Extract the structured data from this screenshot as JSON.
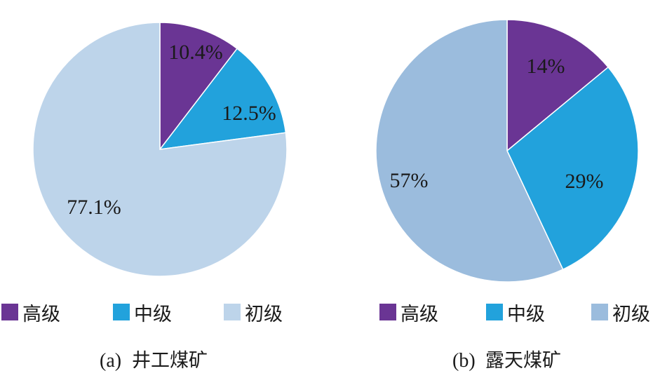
{
  "chart_data": [
    {
      "type": "pie",
      "caption_prefix": "(a)",
      "caption_text": "井工煤矿",
      "categories": [
        "高级",
        "中级",
        "初级"
      ],
      "values": [
        10.4,
        12.5,
        77.1
      ],
      "labels": [
        "10.4%",
        "12.5%",
        "77.1%"
      ],
      "colors": [
        "#6a3594",
        "#22a2dc",
        "#bdd4ea"
      ],
      "legend": "bottom"
    },
    {
      "type": "pie",
      "caption_prefix": "(b)",
      "caption_text": "露天煤矿",
      "categories": [
        "高级",
        "中级",
        "初级"
      ],
      "values": [
        14,
        29,
        57
      ],
      "labels": [
        "14%",
        "29%",
        "57%"
      ],
      "colors": [
        "#6a3594",
        "#22a2dc",
        "#9bbcdd"
      ],
      "legend": "bottom"
    }
  ]
}
